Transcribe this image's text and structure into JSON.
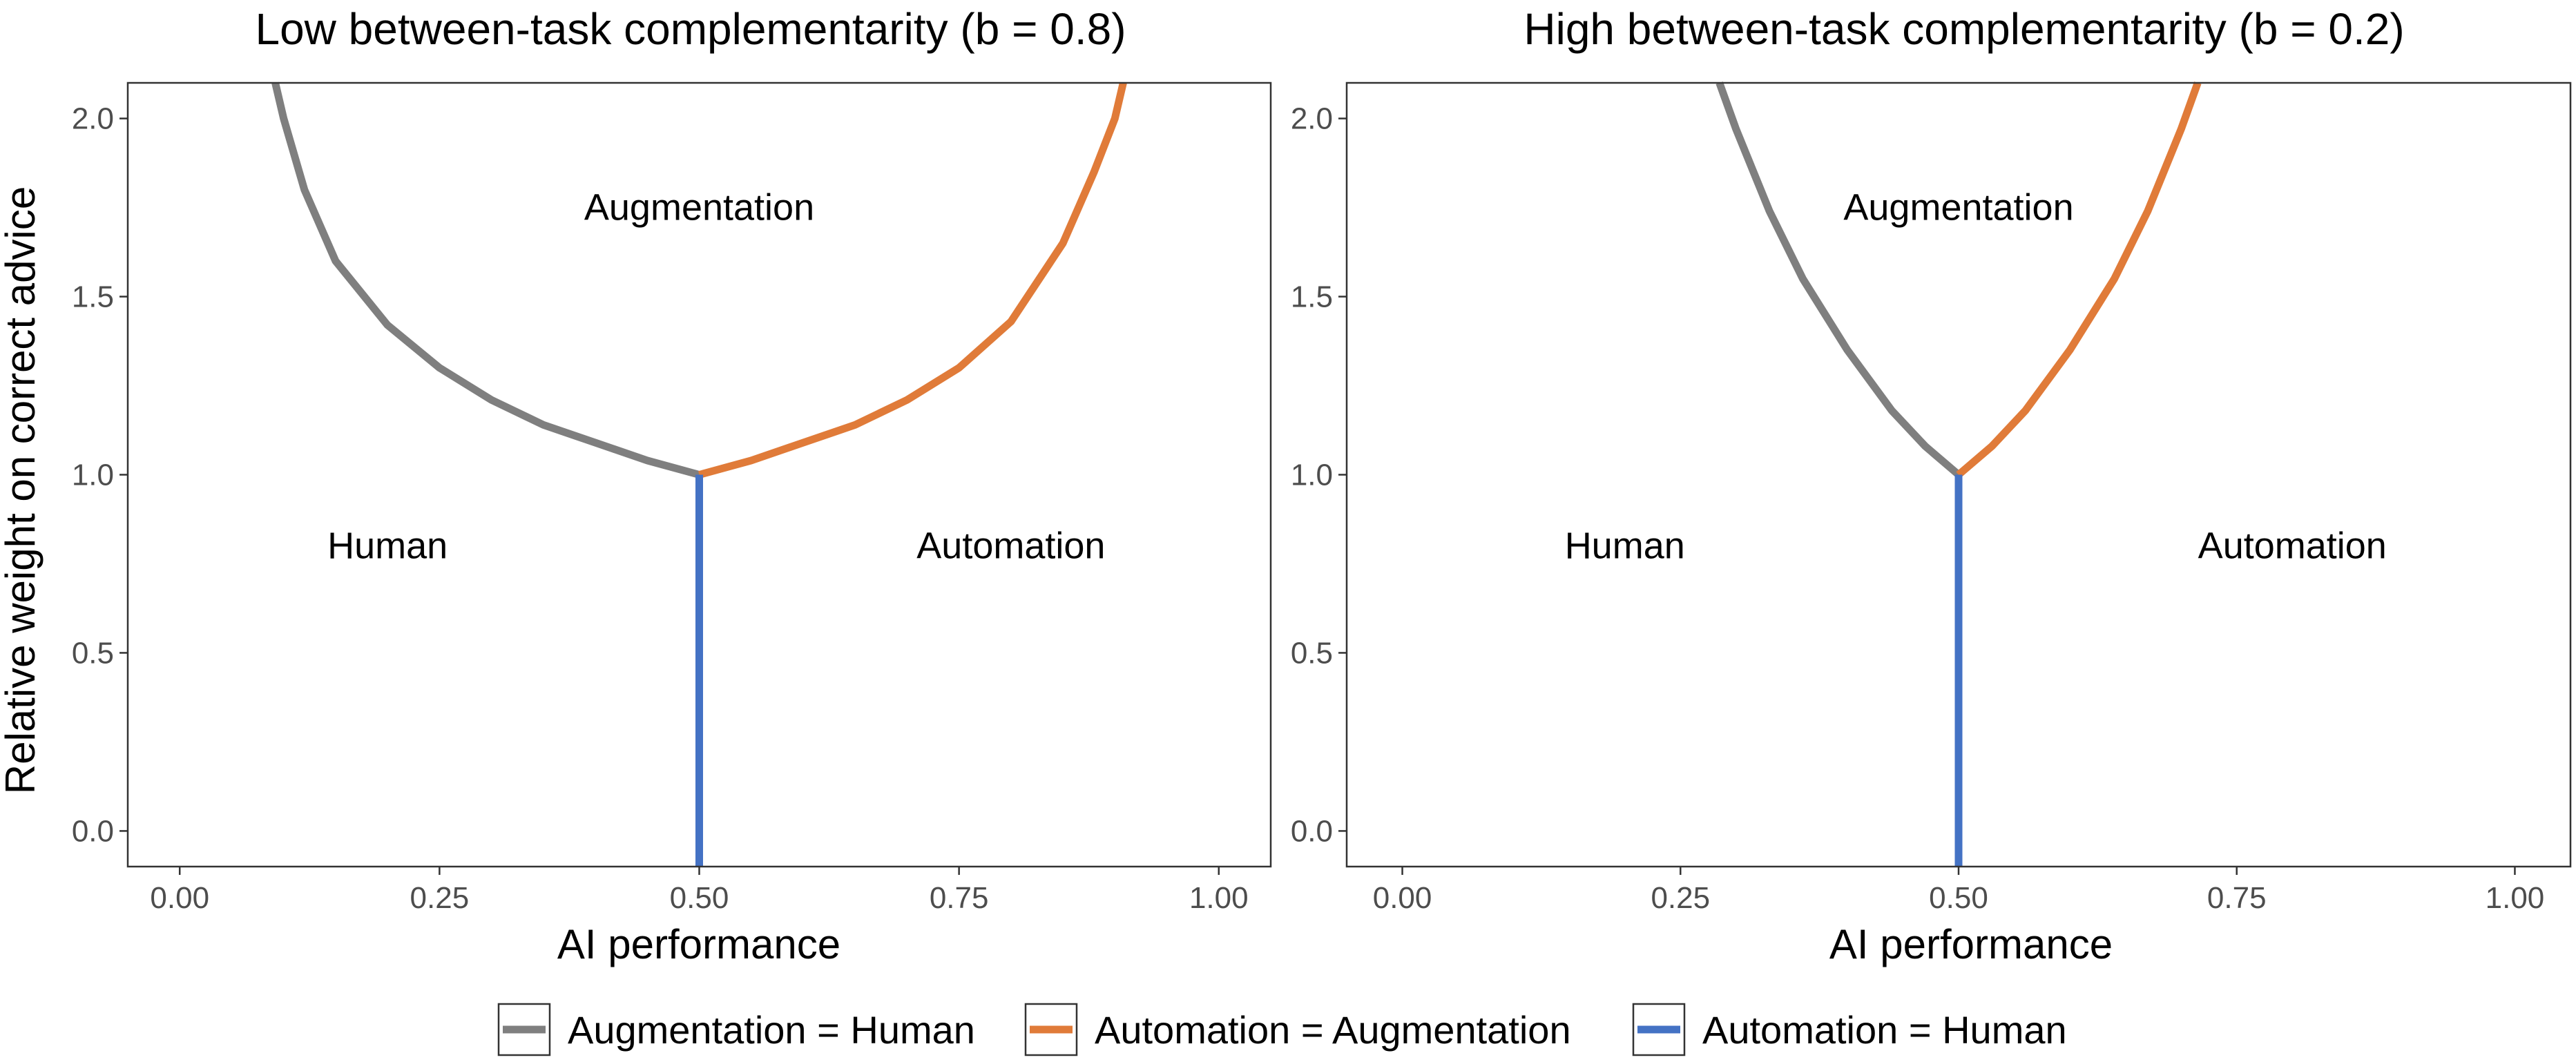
{
  "colors": {
    "augmentation_equals_human": "#7f7f7f",
    "automation_equals_augmentation": "#e07b39",
    "automation_equals_human": "#4472c4"
  },
  "y_axis_title": "Relative weight on correct advice",
  "legend": {
    "placement": "bottom",
    "items": [
      {
        "label": "Augmentation = Human",
        "color": "#7f7f7f"
      },
      {
        "label": "Automation = Augmentation",
        "color": "#e07b39"
      },
      {
        "label": "Automation = Human",
        "color": "#4472c4"
      }
    ]
  },
  "chart_data": [
    {
      "type": "line",
      "title": "Low between-task complementarity (b = 0.8)",
      "xlabel": "AI performance",
      "ylabel": "Relative weight on correct advice",
      "xlim": [
        -0.05,
        1.05
      ],
      "ylim": [
        -0.1,
        2.1
      ],
      "xticks": [
        "0.00",
        "0.25",
        "0.50",
        "0.75",
        "1.00"
      ],
      "yticks": [
        "0.0",
        "0.5",
        "1.0",
        "1.5",
        "2.0"
      ],
      "grid": false,
      "region_labels": [
        {
          "text": "Augmentation",
          "x": 0.5,
          "y": 1.75
        },
        {
          "text": "Human",
          "x": 0.2,
          "y": 0.8
        },
        {
          "text": "Automation",
          "x": 0.8,
          "y": 0.8
        }
      ],
      "series": [
        {
          "name": "Augmentation = Human",
          "color": "#7f7f7f",
          "x": [
            0.092,
            0.1,
            0.12,
            0.15,
            0.2,
            0.25,
            0.3,
            0.35,
            0.4,
            0.45,
            0.5
          ],
          "y": [
            2.1,
            2.0,
            1.8,
            1.6,
            1.42,
            1.3,
            1.21,
            1.14,
            1.09,
            1.04,
            1.0
          ]
        },
        {
          "name": "Automation = Augmentation",
          "color": "#e07b39",
          "x": [
            0.5,
            0.55,
            0.6,
            0.65,
            0.7,
            0.75,
            0.8,
            0.85,
            0.88,
            0.9,
            0.908
          ],
          "y": [
            1.0,
            1.04,
            1.09,
            1.14,
            1.21,
            1.3,
            1.43,
            1.65,
            1.85,
            2.0,
            2.1
          ]
        },
        {
          "name": "Automation = Human",
          "color": "#4472c4",
          "x": [
            0.5,
            0.5
          ],
          "y": [
            -0.1,
            1.0
          ]
        }
      ]
    },
    {
      "type": "line",
      "title": "High between-task complementarity (b = 0.2)",
      "xlabel": "AI performance",
      "ylabel": "",
      "xlim": [
        -0.05,
        1.05
      ],
      "ylim": [
        -0.1,
        2.1
      ],
      "xticks": [
        "0.00",
        "0.25",
        "0.50",
        "0.75",
        "1.00"
      ],
      "yticks": [
        "0.0",
        "0.5",
        "1.0",
        "1.5",
        "2.0"
      ],
      "grid": false,
      "region_labels": [
        {
          "text": "Augmentation",
          "x": 0.5,
          "y": 1.75
        },
        {
          "text": "Human",
          "x": 0.2,
          "y": 0.8
        },
        {
          "text": "Automation",
          "x": 0.8,
          "y": 0.8
        }
      ],
      "series": [
        {
          "name": "Augmentation = Human",
          "color": "#7f7f7f",
          "x": [
            0.285,
            0.3,
            0.33,
            0.36,
            0.4,
            0.44,
            0.47,
            0.5
          ],
          "y": [
            2.1,
            1.97,
            1.74,
            1.55,
            1.35,
            1.18,
            1.08,
            1.0
          ]
        },
        {
          "name": "Automation = Augmentation",
          "color": "#e07b39",
          "x": [
            0.5,
            0.53,
            0.56,
            0.6,
            0.64,
            0.67,
            0.7,
            0.715
          ],
          "y": [
            1.0,
            1.08,
            1.18,
            1.35,
            1.55,
            1.74,
            1.97,
            2.1
          ]
        },
        {
          "name": "Automation = Human",
          "color": "#4472c4",
          "x": [
            0.5,
            0.5
          ],
          "y": [
            -0.1,
            1.0
          ]
        }
      ]
    }
  ]
}
